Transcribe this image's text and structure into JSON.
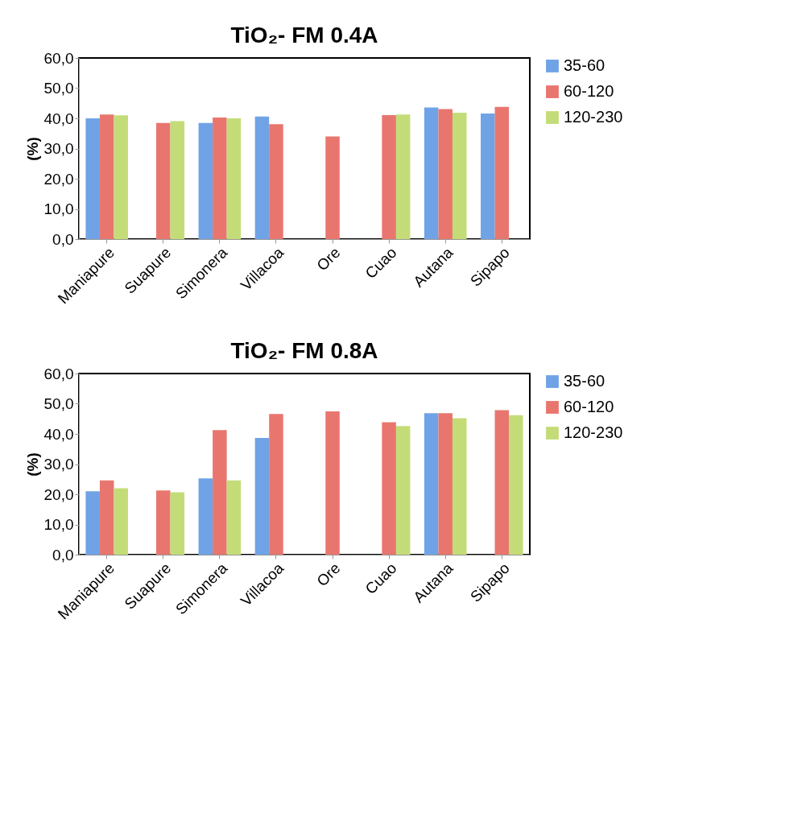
{
  "chart_data": [
    {
      "type": "bar",
      "title": "TiO₂- FM 0.4A",
      "ylabel": "(%)",
      "categories": [
        "Maniapure",
        "Suapure",
        "Simonera",
        "Villacoa",
        "Ore",
        "Cuao",
        "Autana",
        "Sipapo"
      ],
      "series": [
        {
          "name": "35-60",
          "color": "#6fa3e6",
          "values": [
            40.0,
            null,
            38.5,
            40.6,
            null,
            null,
            43.6,
            41.6
          ]
        },
        {
          "name": "60-120",
          "color": "#e8766f",
          "values": [
            41.3,
            38.5,
            40.3,
            38.1,
            34.0,
            41.1,
            43.1,
            43.8
          ]
        },
        {
          "name": "120-230",
          "color": "#c4dc78",
          "values": [
            41.0,
            39.1,
            40.0,
            null,
            null,
            41.3,
            41.9,
            null
          ]
        }
      ],
      "ylim": [
        0,
        60
      ],
      "yticks": [
        {
          "value": 0,
          "label": "0,0"
        },
        {
          "value": 10,
          "label": "10,0"
        },
        {
          "value": 20,
          "label": "20,0"
        },
        {
          "value": 30,
          "label": "30,0"
        },
        {
          "value": 40,
          "label": "40,0"
        },
        {
          "value": 50,
          "label": "50,0"
        },
        {
          "value": 60,
          "label": "60,0"
        }
      ],
      "grid": false,
      "legend": "right"
    },
    {
      "type": "bar",
      "title": "TiO₂- FM 0.8A",
      "ylabel": "(%)",
      "categories": [
        "Maniapure",
        "Suapure",
        "Simonera",
        "Villacoa",
        "Ore",
        "Cuao",
        "Autana",
        "Sipapo"
      ],
      "series": [
        {
          "name": "35-60",
          "color": "#6fa3e6",
          "values": [
            21.0,
            null,
            25.3,
            38.7,
            null,
            null,
            46.9,
            null
          ]
        },
        {
          "name": "60-120",
          "color": "#e8766f",
          "values": [
            24.6,
            21.3,
            41.3,
            46.6,
            47.5,
            43.9,
            46.9,
            47.9
          ]
        },
        {
          "name": "120-230",
          "color": "#c4dc78",
          "values": [
            22.0,
            20.7,
            24.6,
            null,
            null,
            42.6,
            45.2,
            46.2
          ]
        }
      ],
      "ylim": [
        0,
        60
      ],
      "yticks": [
        {
          "value": 0,
          "label": "0,0"
        },
        {
          "value": 10,
          "label": "10,0"
        },
        {
          "value": 20,
          "label": "20,0"
        },
        {
          "value": 30,
          "label": "30,0"
        },
        {
          "value": 40,
          "label": "40,0"
        },
        {
          "value": 50,
          "label": "50,0"
        },
        {
          "value": 60,
          "label": "60,0"
        }
      ],
      "grid": false,
      "legend": "right"
    }
  ]
}
